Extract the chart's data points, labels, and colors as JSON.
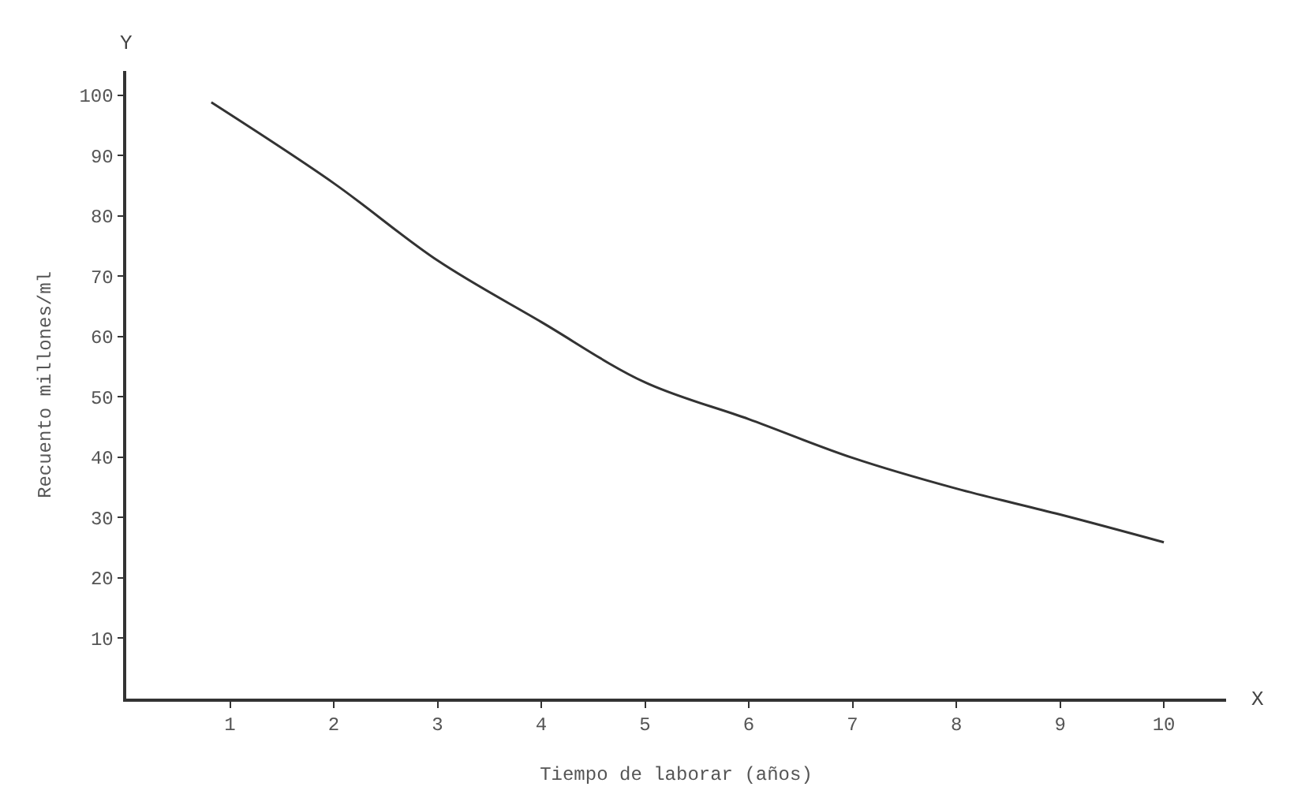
{
  "chart_data": {
    "type": "line",
    "xlabel": "Tiempo de laborar (años)",
    "ylabel": "Recuento millones/ml",
    "annotations": [
      "Y",
      "X"
    ],
    "x": [
      0.82,
      2,
      3,
      4,
      5,
      6,
      7,
      8,
      9,
      10
    ],
    "series": [
      {
        "color": "#333333",
        "values": [
          98.8,
          85.4,
          72.6,
          62.4,
          52.4,
          46.3,
          39.9,
          34.8,
          30.5,
          25.9
        ]
      }
    ],
    "xlim": [
      0,
      10.6
    ],
    "ylim": [
      0,
      104
    ],
    "xticks": [
      1,
      2,
      3,
      4,
      5,
      6,
      7,
      8,
      9,
      10
    ],
    "yticks": [
      10,
      20,
      30,
      40,
      50,
      60,
      70,
      80,
      90,
      100
    ],
    "legend": false,
    "marker": "none",
    "line_style": "solid"
  }
}
